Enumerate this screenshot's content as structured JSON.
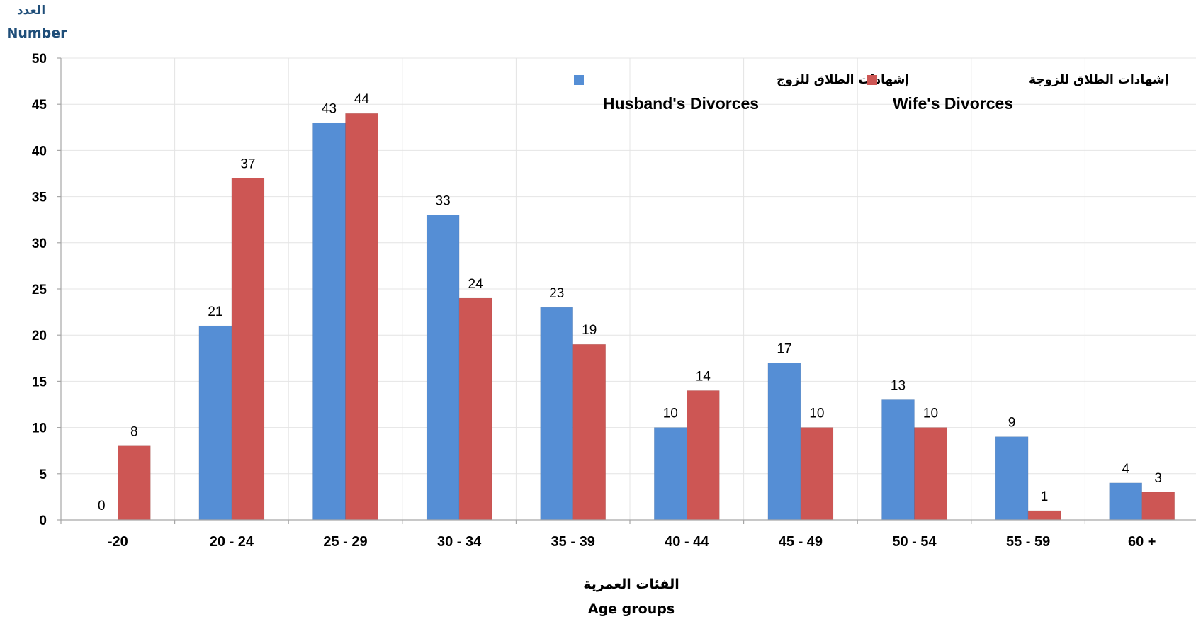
{
  "chart_data": {
    "type": "bar",
    "ylabel_ar": "العدد",
    "ylabel_en": "Number",
    "xlabel_ar": "الفئات العمرية",
    "xlabel_en": "Age groups",
    "ylim": [
      0,
      50
    ],
    "yticks": [
      0,
      5,
      10,
      15,
      20,
      25,
      30,
      35,
      40,
      45,
      50
    ],
    "grid": true,
    "legend_position": "top",
    "categories": [
      "-20",
      "20 - 24",
      "25 - 29",
      "30 - 34",
      "35 - 39",
      "40 - 44",
      "45 - 49",
      "50 - 54",
      "55 - 59",
      "60 +"
    ],
    "series": [
      {
        "name": "Husband's Divorces",
        "name_ar": "إشهادات الطلاق للزوج",
        "color": "#558ed5",
        "values": [
          0,
          21,
          43,
          33,
          23,
          10,
          17,
          13,
          9,
          4
        ]
      },
      {
        "name": "Wife's Divorces",
        "name_ar": "إشهادات الطلاق للزوجة",
        "color": "#cd5654",
        "values": [
          8,
          37,
          44,
          24,
          19,
          14,
          10,
          10,
          1,
          3
        ]
      }
    ]
  }
}
